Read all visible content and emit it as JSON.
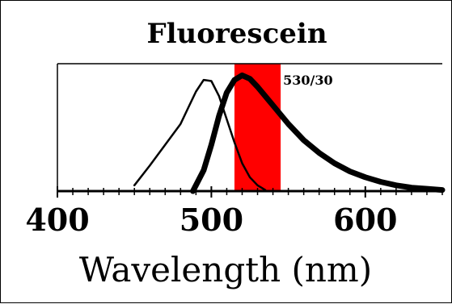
{
  "chart_data": {
    "type": "line",
    "title": "Fluorescein",
    "xlabel": "Wavelength (nm)",
    "ylabel": "",
    "xlim": [
      400,
      650
    ],
    "ylim": [
      0,
      1.1
    ],
    "x_ticks": [
      400,
      500,
      600
    ],
    "x_tick_labels": [
      "400",
      "500",
      "600"
    ],
    "minor_tick_step": 10,
    "grid": false,
    "legend": "none",
    "filter_band": {
      "label": "530/30",
      "range": [
        515,
        545
      ],
      "color": "#ff0000"
    },
    "series": [
      {
        "style": "thin",
        "color": "#000000",
        "x": [
          450,
          460,
          470,
          480,
          485,
          490,
          495,
          500,
          505,
          510,
          515,
          520,
          525,
          530,
          535
        ],
        "y": [
          0.05,
          0.22,
          0.4,
          0.58,
          0.72,
          0.86,
          0.96,
          0.95,
          0.82,
          0.62,
          0.42,
          0.24,
          0.12,
          0.05,
          0.01
        ]
      },
      {
        "style": "thick",
        "color": "#000000",
        "x": [
          488,
          495,
          500,
          505,
          510,
          515,
          520,
          525,
          530,
          540,
          550,
          560,
          570,
          580,
          590,
          600,
          610,
          620,
          630,
          640,
          650
        ],
        "y": [
          0.0,
          0.18,
          0.4,
          0.65,
          0.85,
          0.96,
          1.0,
          0.97,
          0.9,
          0.74,
          0.58,
          0.44,
          0.33,
          0.24,
          0.17,
          0.12,
          0.08,
          0.05,
          0.03,
          0.02,
          0.01
        ]
      }
    ]
  }
}
